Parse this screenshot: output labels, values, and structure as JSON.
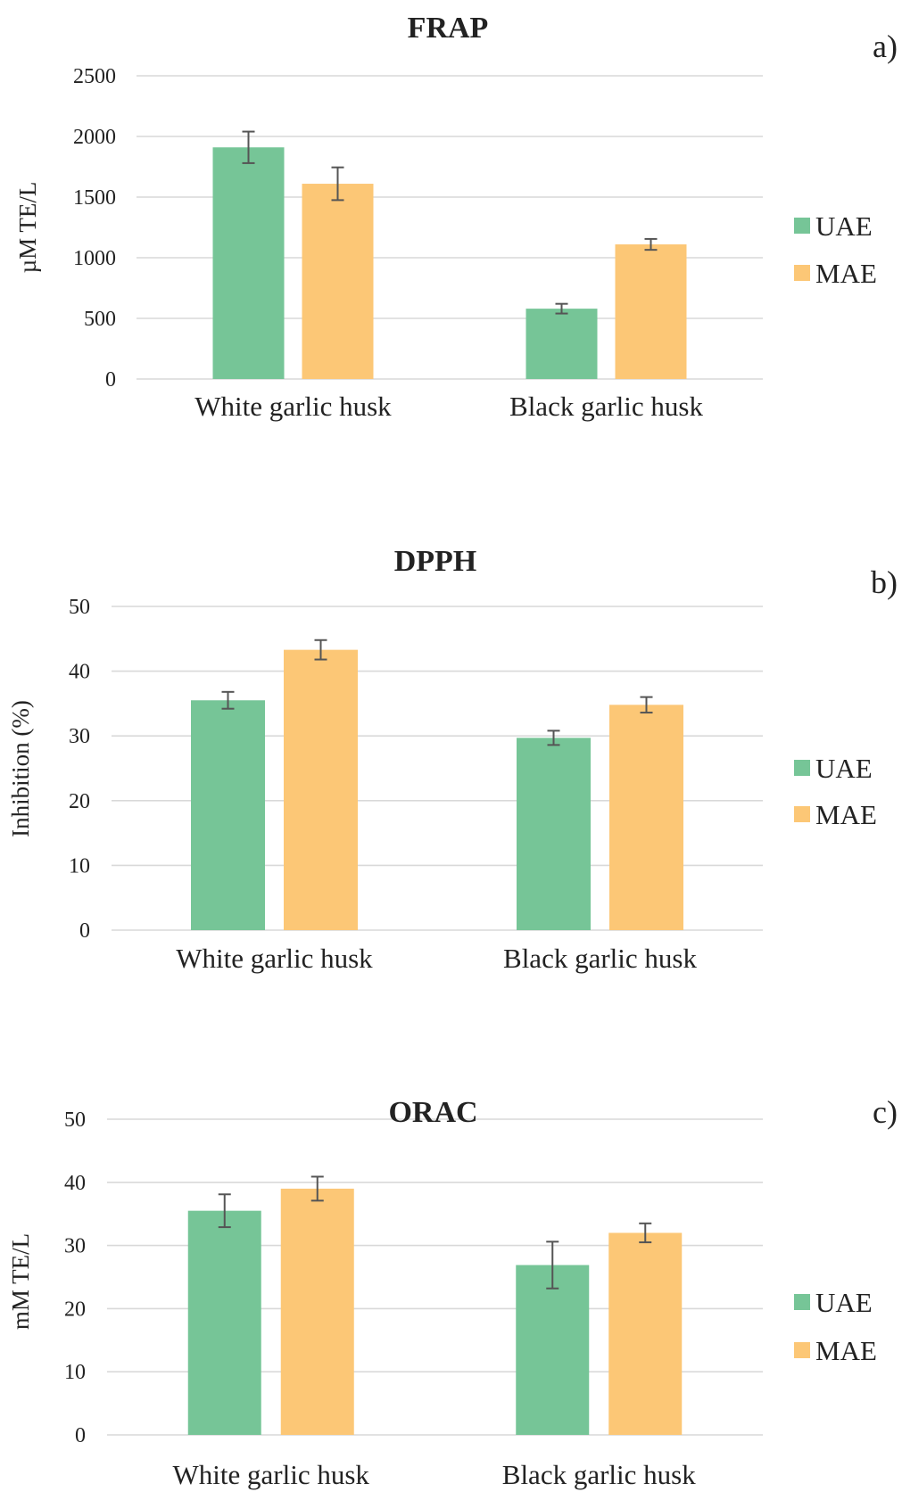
{
  "colors": {
    "UAE": "#76c597",
    "MAE": "#fcc776"
  },
  "chart_data": [
    {
      "type": "bar",
      "panel": "a)",
      "title": "FRAP",
      "ylabel": "µM TE/L",
      "xlabel": "",
      "ylim": [
        0,
        2500
      ],
      "yticks": [
        0,
        500,
        1000,
        1500,
        2000,
        2500
      ],
      "categories": [
        "White garlic husk",
        "Black garlic husk"
      ],
      "series": [
        {
          "name": "UAE",
          "values": [
            1910,
            580
          ],
          "errors": [
            130,
            40
          ]
        },
        {
          "name": "MAE",
          "values": [
            1610,
            1110
          ],
          "errors": [
            135,
            45
          ]
        }
      ],
      "grid": true,
      "legend": "right"
    },
    {
      "type": "bar",
      "panel": "b)",
      "title": "DPPH",
      "ylabel": "Inhibition (%)",
      "xlabel": "",
      "ylim": [
        0,
        50
      ],
      "yticks": [
        0,
        10,
        20,
        30,
        40,
        50
      ],
      "categories": [
        "White garlic husk",
        "Black garlic husk"
      ],
      "series": [
        {
          "name": "UAE",
          "values": [
            35.5,
            29.7
          ],
          "errors": [
            1.3,
            1.1
          ]
        },
        {
          "name": "MAE",
          "values": [
            43.3,
            34.8
          ],
          "errors": [
            1.5,
            1.2
          ]
        }
      ],
      "grid": true,
      "legend": "right"
    },
    {
      "type": "bar",
      "panel": "c)",
      "title": "ORAC",
      "ylabel": "mM TE/L",
      "xlabel": "",
      "ylim": [
        0,
        50
      ],
      "yticks": [
        0,
        10,
        20,
        30,
        40,
        50
      ],
      "categories": [
        "White garlic husk",
        "Black garlic husk"
      ],
      "series": [
        {
          "name": "UAE",
          "values": [
            35.5,
            26.9
          ],
          "errors": [
            2.6,
            3.7
          ]
        },
        {
          "name": "MAE",
          "values": [
            39.0,
            32.0
          ],
          "errors": [
            1.9,
            1.5
          ]
        }
      ],
      "grid": true,
      "legend": "right"
    }
  ]
}
